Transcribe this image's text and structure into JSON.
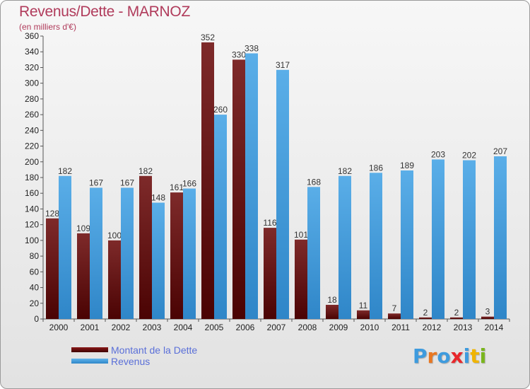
{
  "title": "Revenus/Dette - MARNOZ",
  "subtitle": "(en milliers d'€)",
  "colors": {
    "title": "#b03b5b",
    "debt": "#6e0c0c",
    "revenue": "#3e9bde",
    "legend_text": "#5a6fd8"
  },
  "chart_data": {
    "type": "bar",
    "categories": [
      "2000",
      "2001",
      "2002",
      "2003",
      "2004",
      "2005",
      "2006",
      "2007",
      "2008",
      "2009",
      "2010",
      "2011",
      "2012",
      "2013",
      "2014"
    ],
    "series": [
      {
        "name": "Montant de la Dette",
        "values": [
          128,
          109,
          100,
          182,
          161,
          352,
          330,
          116,
          101,
          18,
          11,
          7,
          2,
          2,
          3
        ]
      },
      {
        "name": "Revenus",
        "values": [
          182,
          167,
          167,
          148,
          166,
          260,
          338,
          317,
          168,
          182,
          186,
          189,
          203,
          202,
          207
        ]
      }
    ],
    "ylim": [
      0,
      360
    ],
    "ytick_step": 20,
    "grid": false
  },
  "legend": [
    {
      "label": "Montant de la Dette"
    },
    {
      "label": "Revenus"
    }
  ],
  "logo": {
    "text": "Proxiti",
    "letter_colors": [
      "#3e9bde",
      "#e87722",
      "#3e9bde",
      "#e8272b",
      "#3e9bde",
      "#f0b400",
      "#7ab51d"
    ]
  }
}
